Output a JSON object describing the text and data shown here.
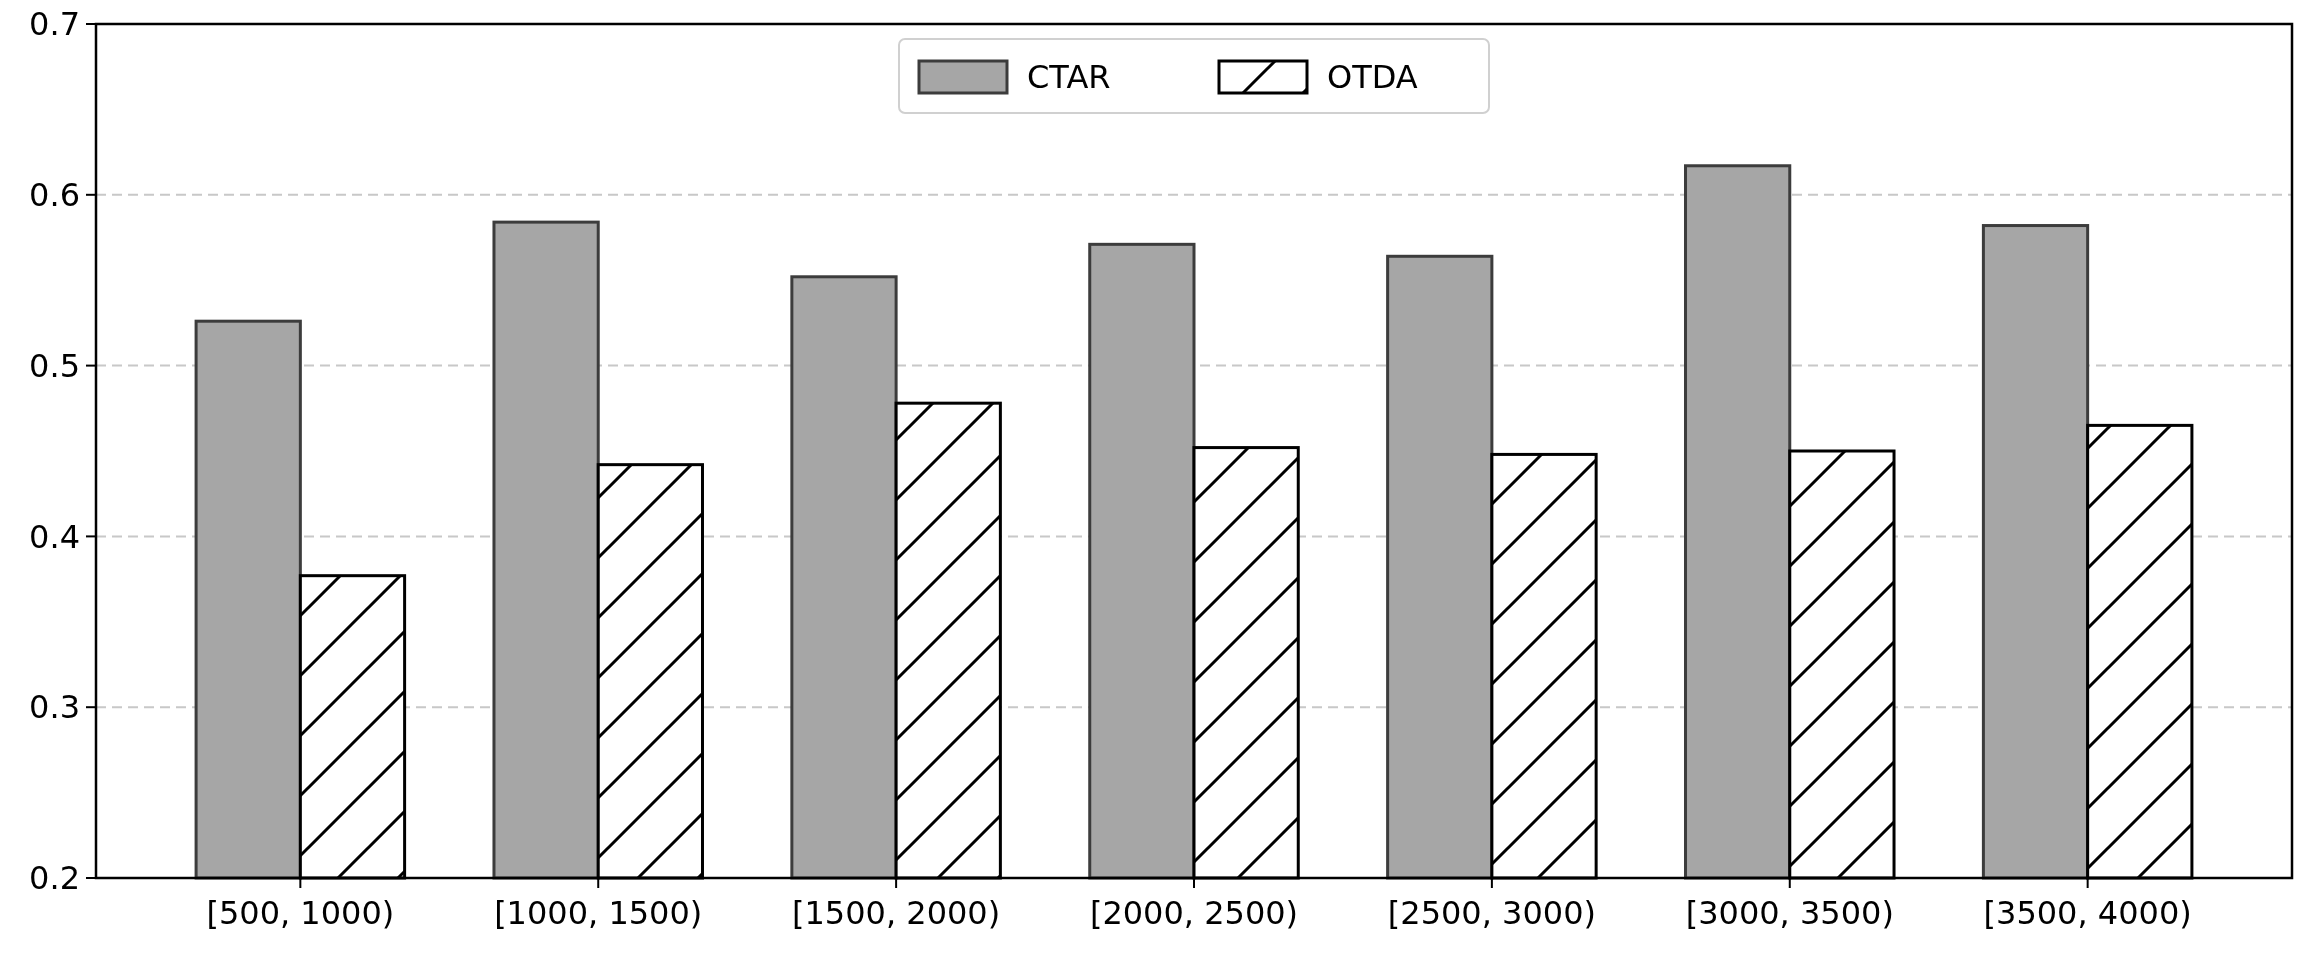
{
  "chart_data": {
    "type": "bar",
    "categories": [
      "[500, 1000)",
      "[1000, 1500)",
      "[1500, 2000)",
      "[2000, 2500)",
      "[2500, 3000)",
      "[3000, 3500)",
      "[3500, 4000)"
    ],
    "series": [
      {
        "name": "CTAR",
        "color": "#a6a6a6",
        "values": [
          0.526,
          0.584,
          0.552,
          0.571,
          0.564,
          0.617,
          0.582
        ]
      },
      {
        "name": "OTDA",
        "color": "#000000",
        "values": [
          0.377,
          0.442,
          0.478,
          0.452,
          0.448,
          0.45,
          0.465
        ]
      }
    ],
    "ylim": [
      0.2,
      0.7
    ],
    "yticks": [
      0.2,
      0.3,
      0.4,
      0.5,
      0.6,
      0.7
    ],
    "grid": "y",
    "legend": "top"
  }
}
